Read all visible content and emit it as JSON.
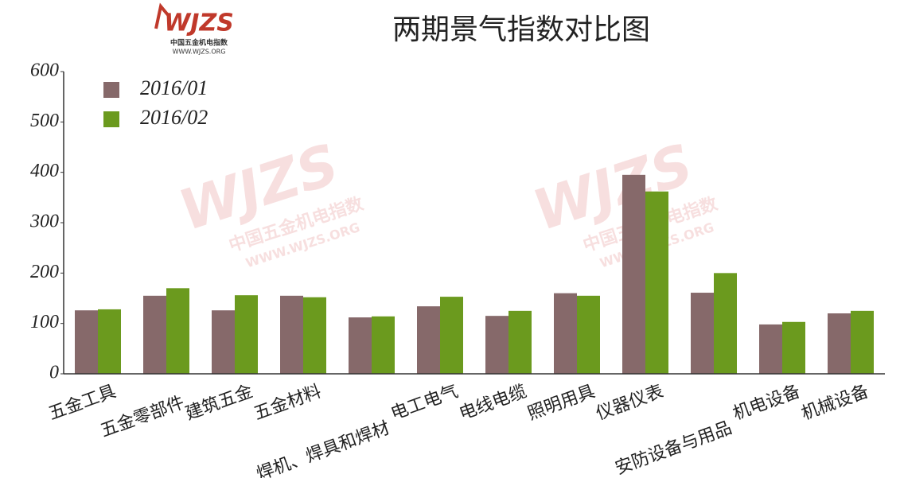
{
  "logo": {
    "name": "WJZS",
    "subtitle": "中国五金机电指数",
    "url": "WWW.WJZS.ORG"
  },
  "chart_data": {
    "type": "bar",
    "title": "两期景气指数对比图",
    "categories": [
      "五金工具",
      "五金零部件",
      "建筑五金",
      "五金材料",
      "焊机、焊具和焊材",
      "电工电气",
      "电线电缆",
      "照明用具",
      "仪器仪表",
      "安防设备与用品",
      "机电设备",
      "机械设备"
    ],
    "series": [
      {
        "name": "2016/01",
        "color": "#86696a",
        "values": [
          126,
          155,
          126,
          155,
          112,
          134,
          115,
          160,
          395,
          161,
          98,
          120
        ]
      },
      {
        "name": "2016/02",
        "color": "#6b9a1e",
        "values": [
          128,
          170,
          156,
          152,
          114,
          153,
          125,
          155,
          362,
          200,
          103,
          125
        ]
      }
    ],
    "ylim": [
      0,
      600
    ],
    "yticks": [
      0,
      100,
      200,
      300,
      400,
      500,
      600
    ],
    "grid": false,
    "legend": "top-left"
  }
}
